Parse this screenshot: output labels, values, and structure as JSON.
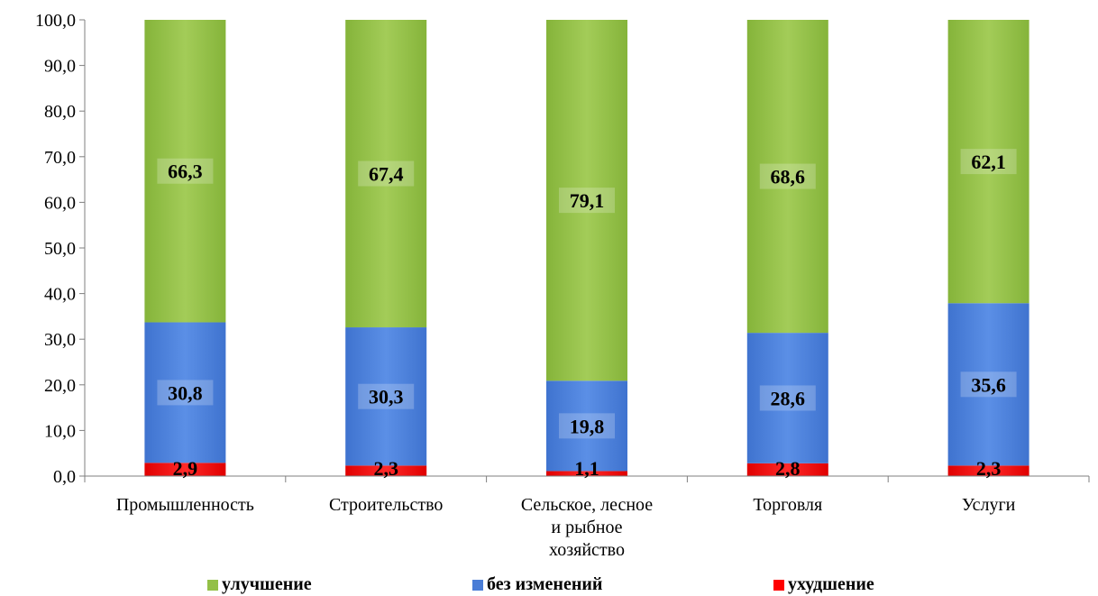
{
  "chart_data": {
    "type": "bar",
    "stacked": true,
    "categories": [
      "Промышленность",
      "Строительство",
      "Сельское, лесное и рыбное хозяйство",
      "Торговля",
      "Услуги"
    ],
    "category_lines": [
      [
        "Промышленность"
      ],
      [
        "Строительство"
      ],
      [
        "Сельское, лесное",
        "и рыбное",
        "хозяйство"
      ],
      [
        "Торговля"
      ],
      [
        "Услуги"
      ]
    ],
    "series": [
      {
        "name": "ухудшение",
        "color": "#ff0000",
        "values": [
          2.9,
          2.3,
          1.1,
          2.8,
          2.3
        ],
        "labels": [
          "2,9",
          "2,3",
          "1,1",
          "2,8",
          "2,3"
        ]
      },
      {
        "name": "без изменений",
        "color": "#4a7dd6",
        "values": [
          30.8,
          30.3,
          19.8,
          28.6,
          35.6
        ],
        "labels": [
          "30,8",
          "30,3",
          "19,8",
          "28,6",
          "35,6"
        ]
      },
      {
        "name": "улучшение",
        "color": "#93c047",
        "values": [
          66.3,
          67.4,
          79.1,
          68.6,
          62.1
        ],
        "labels": [
          "66,3",
          "67,4",
          "79,1",
          "68,6",
          "62,1"
        ]
      }
    ],
    "ylim": [
      0,
      100
    ],
    "yticks": [
      "0,0",
      "10,0",
      "20,0",
      "30,0",
      "40,0",
      "50,0",
      "60,0",
      "70,0",
      "80,0",
      "90,0",
      "100,0"
    ],
    "grid": false,
    "legend_placement": "bottom",
    "legend": [
      "улучшение",
      "без изменений",
      "ухудшение"
    ]
  }
}
